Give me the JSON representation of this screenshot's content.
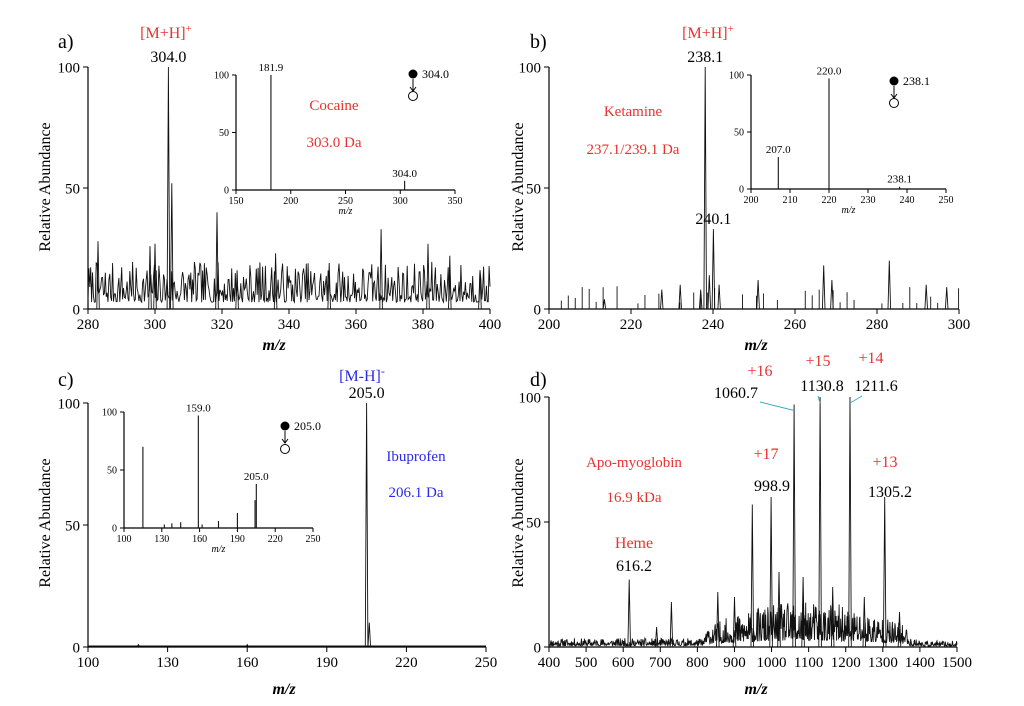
{
  "chart_data": [
    {
      "type": "line",
      "panel": "a)",
      "compound": "Cocaine",
      "mass": "303.0 Da",
      "ion": "[M+H]",
      "ion_sup": "+",
      "ion_color": "#e8322f",
      "info_color": "#e8322f",
      "xlabel": "m/z",
      "ylabel": "Relative Abundance",
      "xlim": [
        280,
        400
      ],
      "ylim": [
        0,
        100
      ],
      "xticks": [
        280,
        300,
        320,
        340,
        360,
        380,
        400
      ],
      "yticks": [
        0,
        50,
        100
      ],
      "peaks": [
        {
          "x": 304.0,
          "y": 100,
          "label": "304.0"
        },
        {
          "x": 305.0,
          "y": 52
        },
        {
          "x": 318.5,
          "y": 40
        },
        {
          "x": 298.5,
          "y": 26
        },
        {
          "x": 300.0,
          "y": 27
        },
        {
          "x": 283.0,
          "y": 28
        },
        {
          "x": 367.5,
          "y": 33
        },
        {
          "x": 381.5,
          "y": 27
        },
        {
          "x": 336.0,
          "y": 23
        },
        {
          "x": 352.0,
          "y": 19
        },
        {
          "x": 324.5,
          "y": 16
        },
        {
          "x": 388.0,
          "y": 22
        },
        {
          "x": 397.0,
          "y": 15
        }
      ],
      "inset": {
        "xlim": [
          150,
          350
        ],
        "ylim": [
          0,
          100
        ],
        "xticks": [
          150,
          200,
          250,
          300,
          350
        ],
        "yticks": [
          0,
          50,
          100
        ],
        "xlabel": "m/z",
        "precursor": "304.0",
        "peaks": [
          {
            "x": 181.9,
            "y": 100,
            "label": "181.9"
          },
          {
            "x": 304.0,
            "y": 8,
            "label": "304.0"
          }
        ]
      }
    },
    {
      "type": "line",
      "panel": "b)",
      "compound": "Ketamine",
      "mass": "237.1/239.1 Da",
      "ion": "[M+H]",
      "ion_sup": "+",
      "ion_color": "#e8322f",
      "info_color": "#e8322f",
      "xlabel": "m/z",
      "ylabel": "Relative Abundance",
      "xlim": [
        200,
        300
      ],
      "ylim": [
        0,
        100
      ],
      "xticks": [
        200,
        220,
        240,
        260,
        280,
        300
      ],
      "yticks": [
        0,
        50,
        100
      ],
      "peaks": [
        {
          "x": 238.1,
          "y": 100,
          "label": "238.1"
        },
        {
          "x": 240.1,
          "y": 33,
          "label": "240.1"
        },
        {
          "x": 239.1,
          "y": 14
        },
        {
          "x": 237.0,
          "y": 8
        },
        {
          "x": 241.5,
          "y": 10
        },
        {
          "x": 267.0,
          "y": 18
        },
        {
          "x": 269.0,
          "y": 12
        },
        {
          "x": 283.0,
          "y": 20
        },
        {
          "x": 251.0,
          "y": 12
        },
        {
          "x": 227.5,
          "y": 8
        },
        {
          "x": 232.0,
          "y": 10
        },
        {
          "x": 213.5,
          "y": 4
        },
        {
          "x": 292.0,
          "y": 10
        },
        {
          "x": 297.0,
          "y": 9
        }
      ],
      "inset": {
        "xlim": [
          200,
          250
        ],
        "ylim": [
          0,
          100
        ],
        "xticks": [
          200,
          210,
          220,
          230,
          240,
          250
        ],
        "yticks": [
          0,
          50,
          100
        ],
        "xlabel": "m/z",
        "precursor": "238.1",
        "peaks": [
          {
            "x": 207.0,
            "y": 28,
            "label": "207.0"
          },
          {
            "x": 220.0,
            "y": 97,
            "label": "220.0"
          },
          {
            "x": 238.1,
            "y": 2,
            "label": "238.1"
          }
        ]
      }
    },
    {
      "type": "line",
      "panel": "c)",
      "compound": "Ibuprofen",
      "mass": "206.1 Da",
      "ion": "[M-H]",
      "ion_sup": "-",
      "ion_color": "#2a2ae8",
      "info_color": "#2a2ae8",
      "xlabel": "m/z",
      "ylabel": "Relative Abundance",
      "xlim": [
        100,
        250
      ],
      "ylim": [
        0,
        100
      ],
      "xticks": [
        100,
        130,
        160,
        190,
        220,
        250
      ],
      "yticks": [
        0,
        50,
        100
      ],
      "peaks": [
        {
          "x": 205.0,
          "y": 100,
          "label": "205.0"
        },
        {
          "x": 206.0,
          "y": 10
        },
        {
          "x": 119.0,
          "y": 1
        },
        {
          "x": 160.0,
          "y": 1
        }
      ],
      "inset": {
        "xlim": [
          100,
          250
        ],
        "ylim": [
          0,
          100
        ],
        "xticks": [
          100,
          130,
          160,
          190,
          220,
          250
        ],
        "yticks": [
          0,
          50,
          100
        ],
        "xlabel": "m/z",
        "precursor": "205.0",
        "peaks": [
          {
            "x": 115.0,
            "y": 70
          },
          {
            "x": 159.0,
            "y": 97,
            "label": "159.0"
          },
          {
            "x": 205.0,
            "y": 38,
            "label": "205.0"
          },
          {
            "x": 204.0,
            "y": 24
          },
          {
            "x": 190.0,
            "y": 13
          },
          {
            "x": 175.0,
            "y": 6
          },
          {
            "x": 145.0,
            "y": 5
          },
          {
            "x": 138.0,
            "y": 4
          },
          {
            "x": 132.0,
            "y": 3
          },
          {
            "x": 162.0,
            "y": 3
          }
        ]
      }
    },
    {
      "type": "line",
      "panel": "d)",
      "compound": "Apo-myoglobin",
      "mass": "16.9 kDa",
      "info_color": "#e8322f",
      "charge_color": "#e8322f",
      "xlabel": "m/z",
      "ylabel": "Relative Abundance",
      "xlim": [
        400,
        1500
      ],
      "ylim": [
        0,
        100
      ],
      "xticks": [
        400,
        500,
        600,
        700,
        800,
        900,
        1000,
        1100,
        1200,
        1300,
        1400,
        1500
      ],
      "yticks": [
        0,
        50,
        100
      ],
      "annotations": [
        {
          "x": 616.2,
          "y": 27,
          "value": "616.2",
          "tag": "Heme"
        },
        {
          "x": 998.9,
          "y": 60,
          "value": "998.9",
          "tag": "+17"
        },
        {
          "x": 1060.7,
          "y": 97,
          "value": "1060.7",
          "tag": "+16"
        },
        {
          "x": 1130.8,
          "y": 100,
          "value": "1130.8",
          "tag": "+15"
        },
        {
          "x": 1211.6,
          "y": 100,
          "value": "1211.6",
          "tag": "+14"
        },
        {
          "x": 1305.2,
          "y": 60,
          "value": "1305.2",
          "tag": "+13"
        }
      ],
      "peaks": [
        {
          "x": 616.2,
          "y": 27
        },
        {
          "x": 948.0,
          "y": 57
        },
        {
          "x": 998.9,
          "y": 60
        },
        {
          "x": 1060.7,
          "y": 97
        },
        {
          "x": 1130.8,
          "y": 100
        },
        {
          "x": 1211.6,
          "y": 100
        },
        {
          "x": 1305.2,
          "y": 60
        },
        {
          "x": 855.0,
          "y": 22
        },
        {
          "x": 900.0,
          "y": 20
        },
        {
          "x": 1020.0,
          "y": 30
        },
        {
          "x": 1085.0,
          "y": 28
        },
        {
          "x": 1165.0,
          "y": 24
        },
        {
          "x": 1250.0,
          "y": 20
        },
        {
          "x": 730.0,
          "y": 18
        },
        {
          "x": 690.0,
          "y": 8
        },
        {
          "x": 1345.0,
          "y": 14
        }
      ]
    }
  ]
}
